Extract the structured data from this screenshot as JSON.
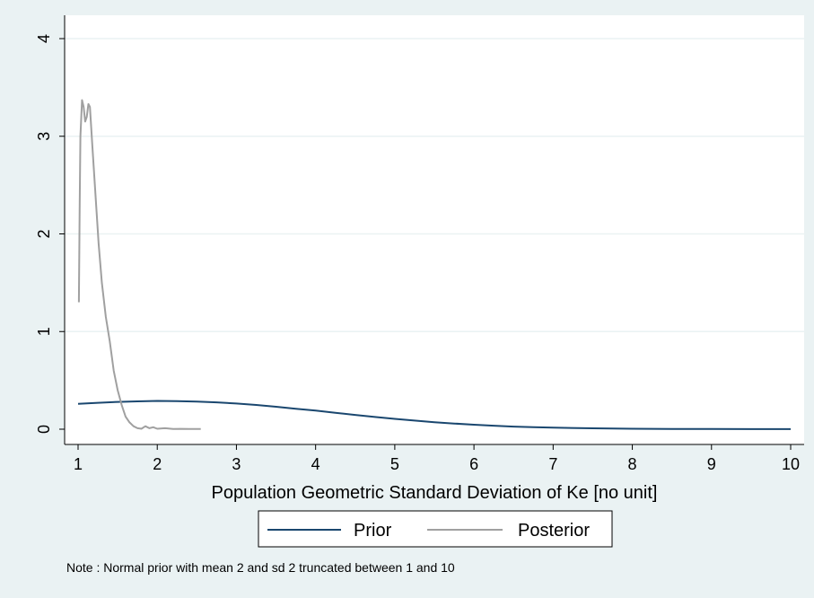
{
  "chart_data": {
    "type": "line",
    "xlabel": "Population Geometric Standard Deviation of Ke [no unit]",
    "ylabel": "",
    "xlim": [
      1,
      10
    ],
    "ylim": [
      0,
      4
    ],
    "xticks": [
      "1",
      "2",
      "3",
      "4",
      "5",
      "6",
      "7",
      "8",
      "9",
      "10"
    ],
    "yticks": [
      "0",
      "1",
      "2",
      "3",
      "4"
    ],
    "grid": "horizontal",
    "legend_position": "bottom",
    "note": "Note : Normal prior with mean 2 and sd 2 truncated between 1 and 10",
    "series": [
      {
        "name": "Prior",
        "color": "#1a476f",
        "points": [
          [
            1.0,
            0.26
          ],
          [
            1.25,
            0.27
          ],
          [
            1.5,
            0.28
          ],
          [
            1.75,
            0.285
          ],
          [
            2.0,
            0.29
          ],
          [
            2.25,
            0.288
          ],
          [
            2.5,
            0.283
          ],
          [
            2.75,
            0.275
          ],
          [
            3.0,
            0.263
          ],
          [
            3.25,
            0.248
          ],
          [
            3.5,
            0.23
          ],
          [
            3.75,
            0.21
          ],
          [
            4.0,
            0.19
          ],
          [
            4.25,
            0.168
          ],
          [
            4.5,
            0.146
          ],
          [
            4.75,
            0.125
          ],
          [
            5.0,
            0.106
          ],
          [
            5.25,
            0.088
          ],
          [
            5.5,
            0.072
          ],
          [
            5.75,
            0.058
          ],
          [
            6.0,
            0.046
          ],
          [
            6.25,
            0.036
          ],
          [
            6.5,
            0.027
          ],
          [
            6.75,
            0.021
          ],
          [
            7.0,
            0.016
          ],
          [
            7.5,
            0.009
          ],
          [
            8.0,
            0.005
          ],
          [
            8.5,
            0.003
          ],
          [
            9.0,
            0.002
          ],
          [
            9.5,
            0.001
          ],
          [
            10.0,
            0.0005
          ]
        ]
      },
      {
        "name": "Posterior",
        "color": "#a0a0a0",
        "points": [
          [
            1.01,
            1.3
          ],
          [
            1.02,
            2.3
          ],
          [
            1.03,
            3.0
          ],
          [
            1.05,
            3.37
          ],
          [
            1.07,
            3.3
          ],
          [
            1.09,
            3.15
          ],
          [
            1.11,
            3.2
          ],
          [
            1.13,
            3.33
          ],
          [
            1.15,
            3.3
          ],
          [
            1.18,
            2.9
          ],
          [
            1.22,
            2.4
          ],
          [
            1.26,
            1.9
          ],
          [
            1.3,
            1.5
          ],
          [
            1.35,
            1.15
          ],
          [
            1.4,
            0.9
          ],
          [
            1.45,
            0.6
          ],
          [
            1.5,
            0.4
          ],
          [
            1.55,
            0.25
          ],
          [
            1.6,
            0.13
          ],
          [
            1.65,
            0.07
          ],
          [
            1.7,
            0.03
          ],
          [
            1.75,
            0.01
          ],
          [
            1.8,
            0.005
          ],
          [
            1.85,
            0.03
          ],
          [
            1.9,
            0.01
          ],
          [
            1.95,
            0.02
          ],
          [
            2.0,
            0.005
          ],
          [
            2.1,
            0.01
          ],
          [
            2.2,
            0.003
          ],
          [
            2.3,
            0.004
          ],
          [
            2.4,
            0.002
          ],
          [
            2.55,
            0.002
          ]
        ]
      }
    ]
  }
}
